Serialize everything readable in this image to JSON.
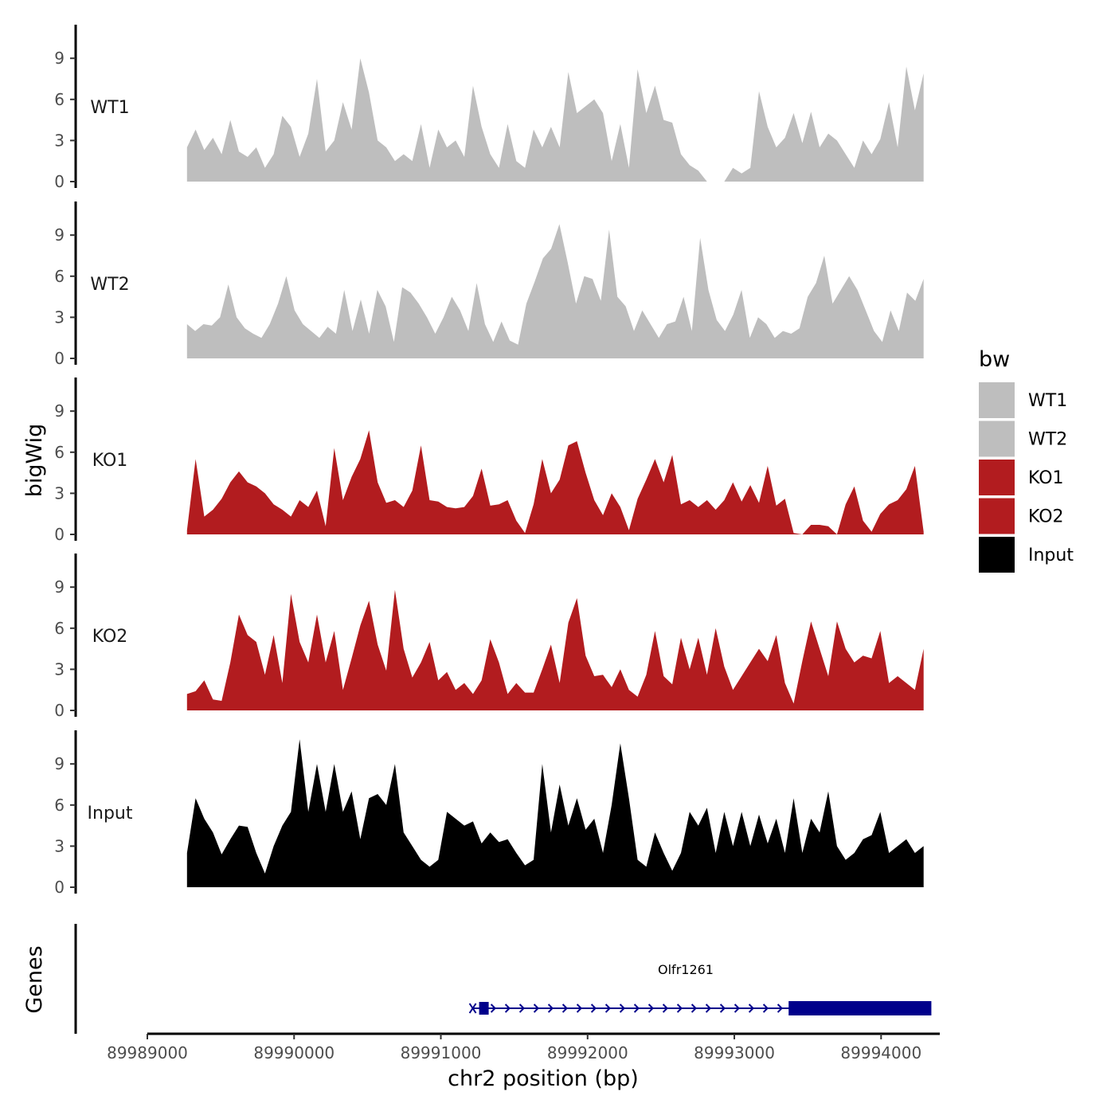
{
  "chart_data": {
    "type": "area",
    "title": "",
    "xlabel": "chr2 position (bp)",
    "ylabel": "bigWig",
    "genes_ylabel": "Genes",
    "xlim": [
      89989000,
      89994400
    ],
    "ylim": [
      0,
      11
    ],
    "x_start": 89989270,
    "x_end": 89994290,
    "x_ticks": [
      89989000,
      89990000,
      89991000,
      89992000,
      89993000,
      89994000
    ],
    "x_tick_labels": [
      "89989000",
      "89990000",
      "89991000",
      "89992000",
      "89993000",
      "89994000"
    ],
    "y_ticks": [
      0,
      3,
      6,
      9
    ],
    "y_tick_labels": [
      "0",
      "3",
      "6",
      "9"
    ],
    "legend": {
      "title": "bw",
      "position": "right",
      "entries": [
        {
          "label": "WT1",
          "color": "#bebebe"
        },
        {
          "label": "WT2",
          "color": "#bebebe"
        },
        {
          "label": "KO1",
          "color": "#b21c1f"
        },
        {
          "label": "KO2",
          "color": "#b21c1f"
        },
        {
          "label": "Input",
          "color": "#000000"
        }
      ]
    },
    "series": [
      {
        "name": "WT1",
        "color": "#bebebe",
        "values": [
          2.5,
          3.8,
          2.3,
          3.2,
          2.0,
          4.5,
          2.2,
          1.8,
          2.5,
          1.0,
          2.0,
          4.8,
          4.0,
          1.8,
          3.5,
          7.5,
          2.2,
          3.0,
          5.8,
          3.8,
          9.0,
          6.5,
          3.0,
          2.5,
          1.5,
          2.0,
          1.5,
          4.2,
          1.0,
          3.8,
          2.5,
          3.0,
          1.8,
          7.0,
          4.0,
          2.0,
          1.0,
          4.2,
          1.5,
          1.0,
          3.8,
          2.5,
          4.0,
          2.5,
          8.0,
          5.0,
          5.5,
          6.0,
          5.0,
          1.5,
          4.2,
          1.0,
          8.2,
          5.0,
          7.0,
          4.5,
          4.3,
          2.0,
          1.2,
          0.8,
          0,
          0,
          0,
          1.0,
          0.6,
          1.0,
          6.6,
          4.0,
          2.5,
          3.2,
          5.0,
          2.8,
          5.1,
          2.5,
          3.5,
          3.0,
          2.0,
          1.0,
          3.0,
          2.0,
          3.1,
          5.8,
          2.5,
          8.4,
          5.2,
          7.9
        ]
      },
      {
        "name": "WT2",
        "color": "#bebebe",
        "values": [
          2.5,
          2.0,
          2.5,
          2.4,
          3.0,
          5.4,
          3.0,
          2.2,
          1.8,
          1.5,
          2.5,
          4.0,
          6.0,
          3.5,
          2.5,
          2.0,
          1.5,
          2.3,
          1.8,
          5.0,
          2.0,
          4.3,
          1.8,
          5.0,
          3.8,
          1.2,
          5.2,
          4.8,
          4.0,
          3.0,
          1.8,
          3.0,
          4.5,
          3.5,
          2.0,
          5.5,
          2.5,
          1.2,
          2.7,
          1.3,
          1.0,
          4.0,
          5.6,
          7.3,
          8.0,
          9.8,
          7.0,
          4.0,
          6.0,
          5.8,
          4.2,
          9.4,
          4.5,
          3.8,
          2.0,
          3.5,
          2.5,
          1.5,
          2.5,
          2.7,
          4.5,
          2.0,
          8.8,
          5.0,
          2.8,
          2.0,
          3.2,
          5.0,
          1.5,
          3.0,
          2.5,
          1.5,
          2.0,
          1.8,
          2.2,
          4.5,
          5.5,
          7.5,
          4.0,
          5.0,
          6.0,
          5.0,
          3.5,
          2.0,
          1.2,
          3.5,
          2.0,
          4.8,
          4.2,
          5.8
        ]
      },
      {
        "name": "KO1",
        "color": "#b21c1f",
        "values": [
          0.3,
          5.5,
          1.3,
          1.8,
          2.6,
          3.8,
          4.6,
          3.8,
          3.5,
          3.0,
          2.2,
          1.8,
          1.3,
          2.5,
          2.0,
          3.2,
          0.6,
          6.3,
          2.5,
          4.2,
          5.5,
          7.6,
          3.8,
          2.3,
          2.5,
          2.0,
          3.2,
          6.5,
          2.5,
          2.4,
          2.0,
          1.9,
          2.0,
          2.8,
          4.8,
          2.1,
          2.2,
          2.5,
          1.0,
          0.1,
          2.2,
          5.5,
          3.0,
          4.0,
          6.5,
          6.8,
          4.5,
          2.5,
          1.4,
          3.0,
          2.0,
          0.3,
          2.6,
          4.0,
          5.5,
          3.8,
          5.8,
          2.2,
          2.5,
          2.0,
          2.5,
          1.8,
          2.5,
          3.8,
          2.4,
          3.6,
          2.3,
          5.0,
          2.1,
          2.6,
          0.1,
          0,
          0.7,
          0.7,
          0.6,
          0,
          2.2,
          3.5,
          1.0,
          0.2,
          1.5,
          2.2,
          2.5,
          3.3,
          5.0,
          0.2
        ]
      },
      {
        "name": "KO2",
        "color": "#b21c1f",
        "values": [
          1.2,
          1.4,
          2.2,
          0.8,
          0.7,
          3.5,
          7.0,
          5.5,
          5.0,
          2.6,
          5.5,
          2.0,
          8.5,
          5.0,
          3.5,
          7.0,
          3.5,
          5.8,
          1.5,
          3.8,
          6.2,
          8.0,
          4.8,
          2.9,
          8.8,
          4.5,
          2.4,
          3.5,
          5.0,
          2.2,
          2.8,
          1.5,
          2.0,
          1.2,
          2.2,
          5.2,
          3.5,
          1.2,
          2.0,
          1.3,
          1.3,
          3.0,
          4.8,
          2.0,
          6.4,
          8.2,
          4.0,
          2.5,
          2.6,
          1.7,
          3.0,
          1.5,
          1.0,
          2.6,
          5.8,
          2.5,
          1.9,
          5.3,
          3.0,
          5.3,
          2.6,
          6.0,
          3.2,
          1.5,
          2.5,
          3.5,
          4.5,
          3.6,
          5.5,
          2.0,
          0.5,
          3.6,
          6.5,
          4.5,
          2.5,
          6.5,
          4.5,
          3.5,
          4.0,
          3.8,
          5.8,
          2.0,
          2.5,
          2.0,
          1.5,
          4.5
        ]
      },
      {
        "name": "Input",
        "color": "#000000",
        "values": [
          2.5,
          6.5,
          5.0,
          4.0,
          2.4,
          3.5,
          4.5,
          4.4,
          2.5,
          1.0,
          3.0,
          4.5,
          5.5,
          10.8,
          5.5,
          9.0,
          5.5,
          9.0,
          5.5,
          7.0,
          3.5,
          6.5,
          6.8,
          6.0,
          9.0,
          4.0,
          3.0,
          2.0,
          1.5,
          2.0,
          5.5,
          5.0,
          4.5,
          4.8,
          3.2,
          4.0,
          3.3,
          3.5,
          2.5,
          1.6,
          2.0,
          9.0,
          4.0,
          7.5,
          4.5,
          6.5,
          4.2,
          5.0,
          2.5,
          6.0,
          10.5,
          6.5,
          2.0,
          1.5,
          4.0,
          2.5,
          1.2,
          2.5,
          5.5,
          4.5,
          5.8,
          2.5,
          5.5,
          3.0,
          5.5,
          3.0,
          5.3,
          3.2,
          5.0,
          2.5,
          6.5,
          2.5,
          5.0,
          4.0,
          7.0,
          3.0,
          2.0,
          2.5,
          3.5,
          3.8,
          5.5,
          2.5,
          3.0,
          3.5,
          2.5,
          3.0
        ]
      }
    ],
    "genes": [
      {
        "name": "Olfr1261",
        "strand": "+",
        "start": 89991250,
        "end": 89994310,
        "thick_start": 89991250,
        "thick_end": 89991320,
        "thick2_start": 89993370,
        "thick2_end": 89994310,
        "color": "#00008b"
      }
    ]
  }
}
